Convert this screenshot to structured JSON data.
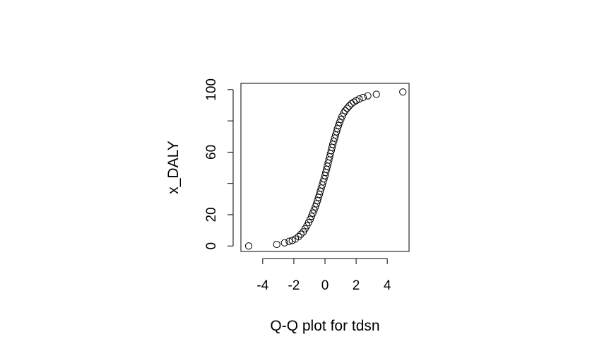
{
  "chart_data": {
    "type": "scatter",
    "xlabel": "Q-Q plot for tdsn",
    "ylabel": "x_DALY",
    "xlim": [
      -5.4,
      5.4
    ],
    "ylim": [
      -3.5,
      104
    ],
    "x_ticks": [
      -4,
      -2,
      0,
      2,
      4
    ],
    "x_tick_labels": [
      "-4",
      "-2",
      "0",
      "2",
      "4"
    ],
    "y_ticks": [
      0,
      20,
      40,
      60,
      80,
      100
    ],
    "y_tick_labels": [
      "0",
      "20",
      "",
      "60",
      "",
      "100"
    ],
    "grid": false,
    "legend": "none",
    "marker": "open-circle",
    "series": [
      {
        "points": [
          [
            -4.9,
            0
          ],
          [
            -3.1,
            1
          ],
          [
            -2.6,
            2
          ],
          [
            -2.3,
            3
          ],
          [
            -2.1,
            3.5
          ],
          [
            -1.9,
            4.5
          ],
          [
            -1.7,
            6
          ],
          [
            -1.55,
            7.5
          ],
          [
            -1.4,
            9
          ],
          [
            -1.28,
            11
          ],
          [
            -1.16,
            13
          ],
          [
            -1.05,
            15
          ],
          [
            -0.95,
            17
          ],
          [
            -0.86,
            19
          ],
          [
            -0.78,
            21
          ],
          [
            -0.7,
            23
          ],
          [
            -0.62,
            25
          ],
          [
            -0.55,
            27
          ],
          [
            -0.48,
            29
          ],
          [
            -0.42,
            31
          ],
          [
            -0.36,
            33
          ],
          [
            -0.3,
            35
          ],
          [
            -0.24,
            37
          ],
          [
            -0.18,
            39
          ],
          [
            -0.12,
            41
          ],
          [
            -0.06,
            43
          ],
          [
            0.0,
            45
          ],
          [
            0.05,
            47
          ],
          [
            0.1,
            49
          ],
          [
            0.15,
            51
          ],
          [
            0.2,
            53
          ],
          [
            0.25,
            55
          ],
          [
            0.3,
            57
          ],
          [
            0.35,
            59
          ],
          [
            0.4,
            61
          ],
          [
            0.45,
            63
          ],
          [
            0.5,
            65
          ],
          [
            0.56,
            67
          ],
          [
            0.62,
            69
          ],
          [
            0.68,
            71
          ],
          [
            0.74,
            73
          ],
          [
            0.8,
            75
          ],
          [
            0.87,
            77
          ],
          [
            0.94,
            79
          ],
          [
            1.02,
            81
          ],
          [
            1.1,
            83
          ],
          [
            1.2,
            85
          ],
          [
            1.3,
            86.5
          ],
          [
            1.42,
            88
          ],
          [
            1.55,
            89.5
          ],
          [
            1.7,
            91
          ],
          [
            1.85,
            92
          ],
          [
            2.0,
            93
          ],
          [
            2.2,
            94
          ],
          [
            2.45,
            95
          ],
          [
            2.75,
            96
          ],
          [
            3.3,
            97
          ],
          [
            5.0,
            98.5
          ]
        ]
      }
    ]
  }
}
